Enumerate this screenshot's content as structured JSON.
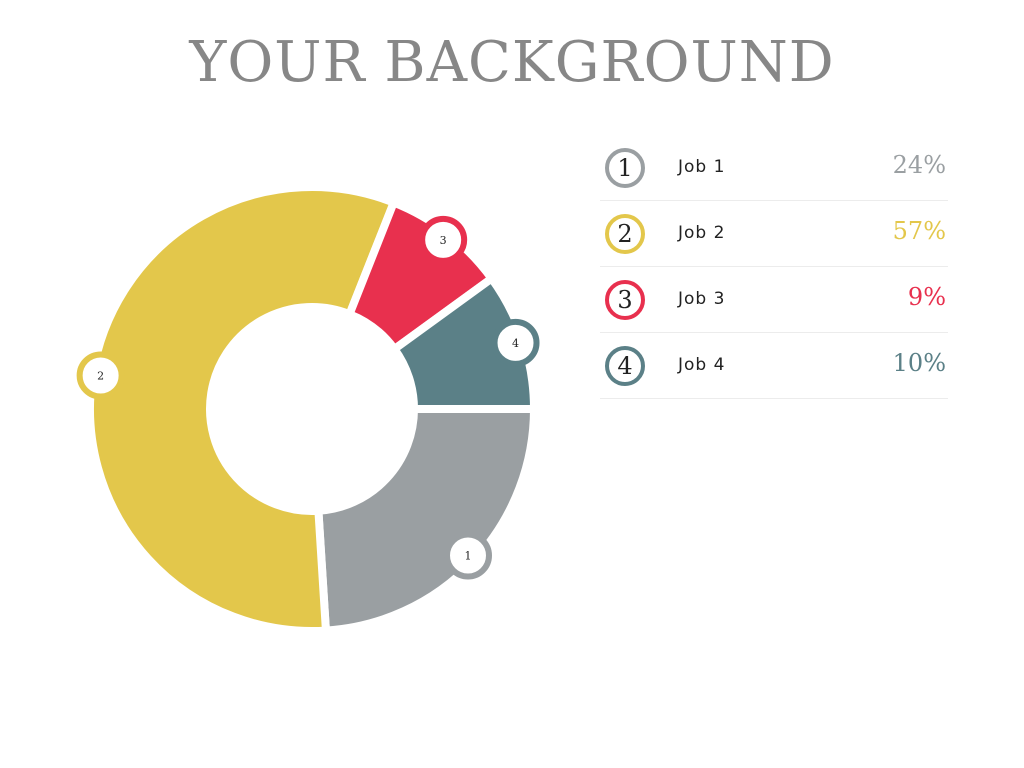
{
  "title": "YOUR BACKGROUND",
  "chart_data": {
    "type": "pie",
    "variant": "donut",
    "categories": [
      "Job 1",
      "Job 2",
      "Job 3",
      "Job 4"
    ],
    "markers": [
      "1",
      "2",
      "3",
      "4"
    ],
    "values": [
      24,
      57,
      9,
      10
    ],
    "value_labels": [
      "24%",
      "57%",
      "9%",
      "10%"
    ],
    "colors": [
      "#9a9fa2",
      "#e3c74b",
      "#e8304e",
      "#5b8087"
    ]
  }
}
